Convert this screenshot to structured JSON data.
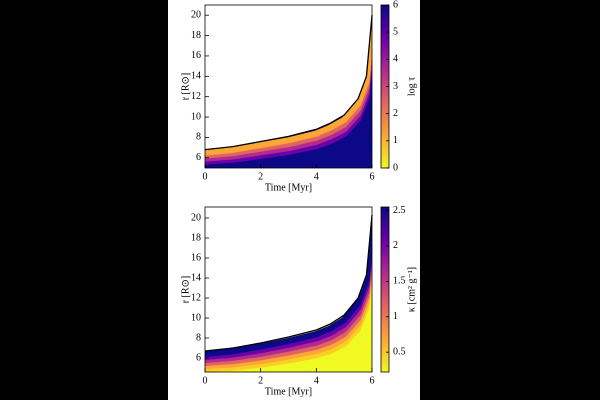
{
  "chart_data": [
    {
      "type": "area",
      "xlabel": "Time [Myr]",
      "ylabel": "r [R⊙]",
      "x": [
        0,
        1,
        2,
        3,
        4,
        4.5,
        5,
        5.5,
        5.8,
        6
      ],
      "series": [
        {
          "values": [
            6.8,
            7.1,
            7.6,
            8.1,
            8.8,
            9.4,
            10.2,
            11.8,
            14.0,
            20.0
          ],
          "color": "#000000"
        }
      ],
      "xlim": [
        0,
        6
      ],
      "xticks": [
        0,
        2,
        4,
        6
      ],
      "ylim": [
        5,
        21
      ],
      "yticks": [
        6,
        8,
        10,
        12,
        14,
        16,
        18,
        20
      ],
      "band_colors": [
        "#fca636",
        "#e16462",
        "#b12a90",
        "#6a00a8",
        "#0d0887"
      ],
      "colorbar": {
        "label": "log τ",
        "lim": [
          0,
          6
        ],
        "ticks": [
          0,
          1,
          2,
          3,
          4,
          5,
          6
        ],
        "colormap": [
          "#f0f921",
          "#fca636",
          "#e16462",
          "#b12a90",
          "#6a00a8",
          "#0d0887"
        ]
      }
    },
    {
      "type": "area",
      "xlabel": "Time [Myr]",
      "ylabel": "r [R⊙]",
      "x": [
        0,
        1,
        2,
        3,
        4,
        4.5,
        5,
        5.5,
        5.8,
        6
      ],
      "series": [
        {
          "values": [
            6.7,
            7.0,
            7.5,
            8.1,
            8.8,
            9.4,
            10.3,
            12.0,
            14.3,
            20.3
          ],
          "color": "#000000"
        }
      ],
      "xlim": [
        0,
        6
      ],
      "xticks": [
        0,
        2,
        4,
        6
      ],
      "ylim": [
        4.6,
        21.1
      ],
      "yticks": [
        6,
        8,
        10,
        12,
        14,
        16,
        18,
        20
      ],
      "band_colors": [
        "#0d0887",
        "#6a00a8",
        "#b12a90",
        "#e16462",
        "#fca636",
        "#fcce25",
        "#f0f921"
      ],
      "colorbar": {
        "label": "κ [cm² g⁻¹]",
        "lim": [
          0.22,
          2.55
        ],
        "ticks": [
          0.5,
          1.0,
          1.5,
          2.0,
          2.5
        ],
        "colormap": [
          "#f0f921",
          "#fca636",
          "#e16462",
          "#b12a90",
          "#6a00a8",
          "#0d0887"
        ]
      }
    }
  ]
}
